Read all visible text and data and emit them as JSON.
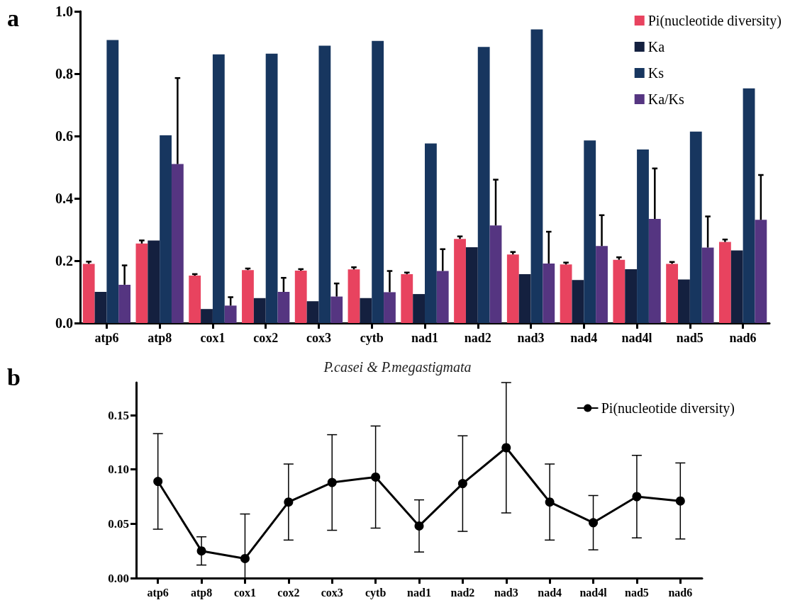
{
  "chart_data": [
    {
      "type": "bar",
      "annotations": [
        "a"
      ],
      "categories": [
        "atp6",
        "atp8",
        "cox1",
        "cox2",
        "cox3",
        "cytb",
        "nad1",
        "nad2",
        "nad3",
        "nad4",
        "nad4l",
        "nad5",
        "nad6"
      ],
      "series": [
        {
          "name": "Pi(nucleotide diversity)",
          "color": "#e8435f",
          "values": [
            0.19,
            0.255,
            0.152,
            0.17,
            0.168,
            0.172,
            0.157,
            0.27,
            0.22,
            0.188,
            0.203,
            0.19,
            0.26
          ],
          "errors": [
            [
              0.19,
              0.197
            ],
            [
              0.255,
              0.265
            ],
            [
              0.152,
              0.157
            ],
            [
              0.17,
              0.175
            ],
            [
              0.168,
              0.173
            ],
            [
              0.172,
              0.179
            ],
            [
              0.157,
              0.162
            ],
            [
              0.27,
              0.278
            ],
            [
              0.22,
              0.228
            ],
            [
              0.188,
              0.194
            ],
            [
              0.203,
              0.211
            ],
            [
              0.19,
              0.196
            ],
            [
              0.26,
              0.268
            ]
          ]
        },
        {
          "name": "Ka",
          "color": "#14203f",
          "values": [
            0.1,
            0.265,
            0.045,
            0.08,
            0.07,
            0.08,
            0.093,
            0.243,
            0.157,
            0.138,
            0.173,
            0.14,
            0.233
          ]
        },
        {
          "name": "Ks",
          "color": "#17365f",
          "values": [
            0.908,
            0.602,
            0.862,
            0.864,
            0.89,
            0.905,
            0.576,
            0.886,
            0.942,
            0.586,
            0.557,
            0.614,
            0.753
          ]
        },
        {
          "name": "Ka/Ks",
          "color": "#553581",
          "values": [
            0.123,
            0.51,
            0.056,
            0.1,
            0.085,
            0.099,
            0.167,
            0.313,
            0.191,
            0.247,
            0.334,
            0.242,
            0.331
          ],
          "errors": [
            [
              0.123,
              0.185
            ],
            [
              0.51,
              0.786
            ],
            [
              0.056,
              0.083
            ],
            [
              0.1,
              0.145
            ],
            [
              0.085,
              0.127
            ],
            [
              0.099,
              0.167
            ],
            [
              0.167,
              0.237
            ],
            [
              0.313,
              0.46
            ],
            [
              0.191,
              0.293
            ],
            [
              0.247,
              0.346
            ],
            [
              0.334,
              0.496
            ],
            [
              0.242,
              0.342
            ],
            [
              0.331,
              0.475
            ]
          ]
        }
      ],
      "ylim": [
        0,
        1
      ],
      "yticks": [
        {
          "value": 0,
          "label": "0.0"
        },
        {
          "value": 0.2,
          "label": "0.2"
        },
        {
          "value": 0.4,
          "label": "0.4"
        },
        {
          "value": 0.6,
          "label": "0.6"
        },
        {
          "value": 0.8,
          "label": "0.8"
        },
        {
          "value": 1,
          "label": "1.0"
        }
      ],
      "grid": false,
      "legend": "top right"
    },
    {
      "type": "line",
      "title": "P.casei & P.megastigmata",
      "annotations": [
        "b"
      ],
      "categories": [
        "atp6",
        "atp8",
        "cox1",
        "cox2",
        "cox3",
        "cytb",
        "nad1",
        "nad2",
        "nad3",
        "nad4",
        "nad4l",
        "nad5",
        "nad6"
      ],
      "series": [
        {
          "name": "Pi(nucleotide diversity)",
          "color": "#000000",
          "values": [
            0.089,
            0.025,
            0.018,
            0.07,
            0.088,
            0.093,
            0.048,
            0.087,
            0.12,
            0.07,
            0.051,
            0.075,
            0.071
          ],
          "errors": [
            0.044,
            0.013,
            [
              0,
              0.059
            ],
            0.035,
            0.044,
            0.047,
            0.024,
            0.044,
            0.06,
            0.035,
            0.025,
            0.038,
            0.035
          ]
        }
      ],
      "ylim": [
        0,
        0.18
      ],
      "yticks": [
        {
          "value": 0,
          "label": "0.00"
        },
        {
          "value": 0.05,
          "label": "0.05"
        },
        {
          "value": 0.1,
          "label": "0.10"
        },
        {
          "value": 0.15,
          "label": "0.15"
        }
      ],
      "grid": false,
      "legend": "top right",
      "marker": "circle",
      "line_style": "solid"
    }
  ]
}
